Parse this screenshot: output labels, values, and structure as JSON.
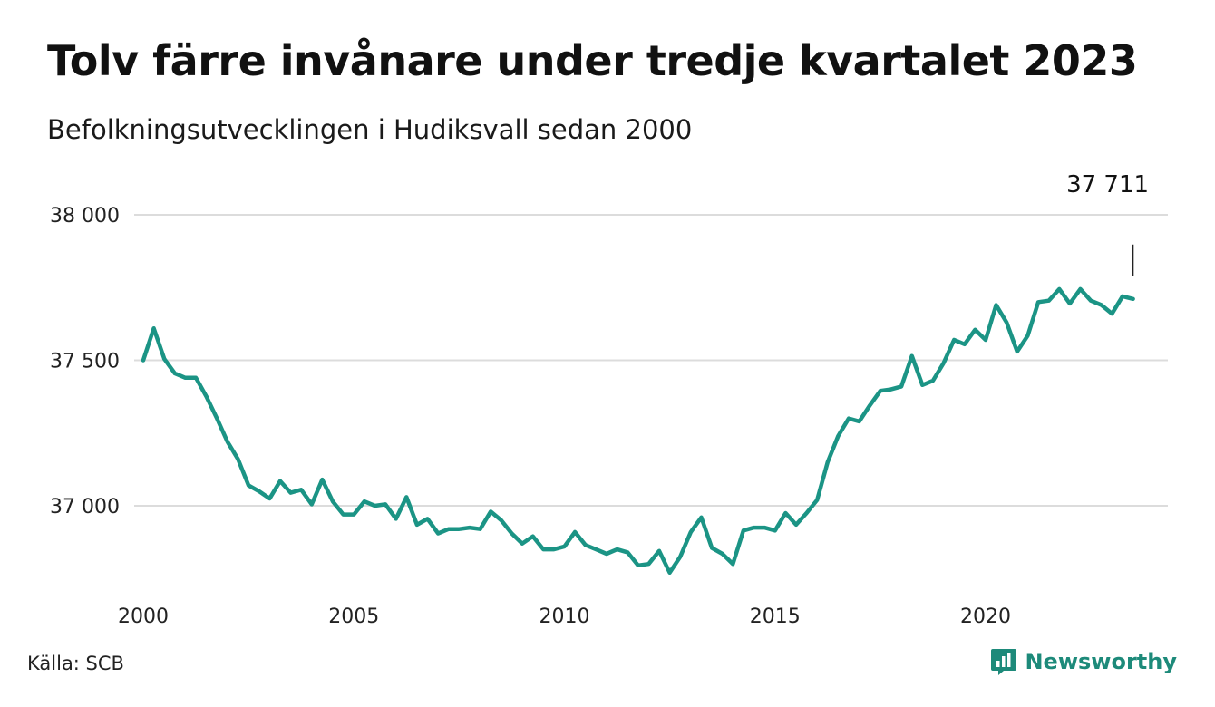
{
  "chart_data": {
    "type": "line",
    "title": "Tolv färre invånare under tredje kvartalet 2023",
    "subtitle": "Befolkningsutvecklingen i Hudiksvall sedan 2000",
    "xlabel": "",
    "ylabel": "",
    "x_ticks": [
      "2000",
      "2005",
      "2010",
      "2015",
      "2020"
    ],
    "y_ticks": [
      {
        "value": 37000,
        "label": "37 000"
      },
      {
        "value": 37500,
        "label": "37 500"
      },
      {
        "value": 38000,
        "label": "38 000"
      }
    ],
    "xlim": [
      2000,
      2024.25
    ],
    "ylim": [
      36750,
      38100
    ],
    "grid": true,
    "line_color": "#1b9485",
    "end_label": "37 711",
    "series": [
      {
        "x": [
          2000.0,
          2000.25,
          2000.5,
          2000.75,
          2001.0,
          2001.25,
          2001.5,
          2001.75,
          2002.0,
          2002.25,
          2002.5,
          2002.75,
          2003.0,
          2003.25,
          2003.5,
          2003.75,
          2004.0,
          2004.25,
          2004.5,
          2004.75,
          2005.0,
          2005.25,
          2005.5,
          2005.75,
          2006.0,
          2006.25,
          2006.5,
          2006.75,
          2007.0,
          2007.25,
          2007.5,
          2007.75,
          2008.0,
          2008.25,
          2008.5,
          2008.75,
          2009.0,
          2009.25,
          2009.5,
          2009.75,
          2010.0,
          2010.25,
          2010.5,
          2010.75,
          2011.0,
          2011.25,
          2011.5,
          2011.75,
          2012.0,
          2012.25,
          2012.5,
          2012.75,
          2013.0,
          2013.25,
          2013.5,
          2013.75,
          2014.0,
          2014.25,
          2014.5,
          2014.75,
          2015.0,
          2015.25,
          2015.5,
          2015.75,
          2016.0,
          2016.25,
          2016.5,
          2016.75,
          2017.0,
          2017.25,
          2017.5,
          2017.75,
          2018.0,
          2018.25,
          2018.5,
          2018.75,
          2019.0,
          2019.25,
          2019.5,
          2019.75,
          2020.0,
          2020.25,
          2020.5,
          2020.75,
          2021.0,
          2021.25,
          2021.5,
          2021.75,
          2022.0,
          2022.25,
          2022.5,
          2022.75,
          2023.0,
          2023.25,
          2023.5
        ],
        "values": [
          37500,
          37610,
          37505,
          37455,
          37440,
          37440,
          37375,
          37300,
          37220,
          37160,
          37070,
          37050,
          37025,
          37085,
          37045,
          37055,
          37005,
          37090,
          37015,
          36970,
          36970,
          37015,
          37000,
          37005,
          36955,
          37030,
          36935,
          36955,
          36905,
          36920,
          36920,
          36925,
          36920,
          36980,
          36950,
          36905,
          36870,
          36895,
          36850,
          36850,
          36860,
          36910,
          36865,
          36850,
          36835,
          36850,
          36840,
          36795,
          36800,
          36845,
          36770,
          36825,
          36910,
          36960,
          36855,
          36835,
          36800,
          36915,
          36925,
          36925,
          36915,
          36975,
          36935,
          36975,
          37020,
          37150,
          37240,
          37300,
          37290,
          37345,
          37395,
          37400,
          37410,
          37515,
          37415,
          37430,
          37490,
          37570,
          37555,
          37605,
          37570,
          37690,
          37630,
          37530,
          37585,
          37700,
          37705,
          37745,
          37695,
          37745,
          37705,
          37690,
          37660,
          37720,
          37711
        ]
      }
    ]
  },
  "footer": {
    "source": "Källa: SCB",
    "brand": "Newsworthy"
  }
}
